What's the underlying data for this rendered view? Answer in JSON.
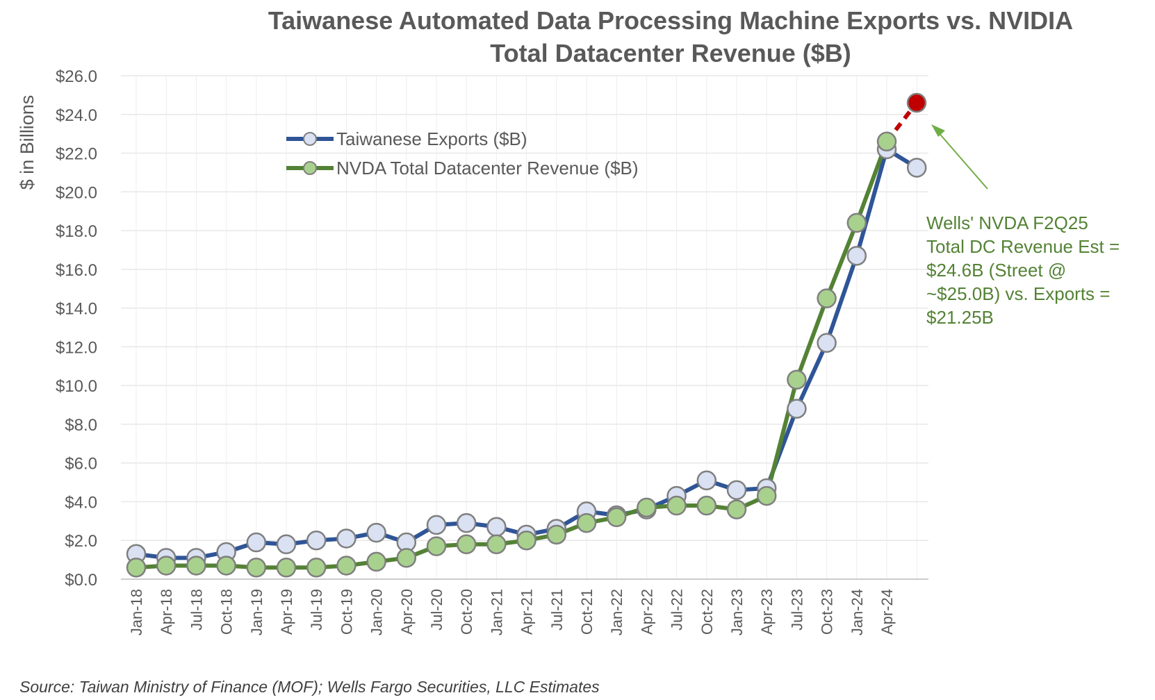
{
  "chart_data": {
    "type": "line",
    "title_lines": [
      "Taiwanese Automated Data Processing Machine Exports vs. NVIDIA",
      "Total Datacenter Revenue ($B)"
    ],
    "ylabel": "$ in Billions",
    "ylim": [
      0,
      26
    ],
    "y_ticks": [
      "$0.0",
      "$2.0",
      "$4.0",
      "$6.0",
      "$8.0",
      "$10.0",
      "$12.0",
      "$14.0",
      "$16.0",
      "$18.0",
      "$20.0",
      "$22.0",
      "$24.0",
      "$26.0"
    ],
    "x_tick_labels": [
      "Jan-18",
      "Apr-18",
      "Jul-18",
      "Oct-18",
      "Jan-19",
      "Apr-19",
      "Jul-19",
      "Oct-19",
      "Jan-20",
      "Apr-20",
      "Jul-20",
      "Oct-20",
      "Jan-21",
      "Apr-21",
      "Jul-21",
      "Oct-21",
      "Jan-22",
      "Apr-22",
      "Jul-22",
      "Oct-22",
      "Jan-23",
      "Apr-23",
      "Jul-23",
      "Oct-23",
      "Jan-24",
      "Apr-24"
    ],
    "grid": true,
    "legend_position": "top-left",
    "series": [
      {
        "name": "Taiwanese Exports ($B)",
        "color": "#2F5597",
        "marker_fill": "#D9E1F2",
        "values": [
          1.3,
          1.1,
          1.1,
          1.4,
          1.9,
          1.8,
          2.0,
          2.1,
          2.4,
          1.9,
          2.8,
          2.9,
          2.7,
          2.3,
          2.6,
          3.5,
          3.3,
          3.6,
          4.3,
          5.1,
          4.6,
          4.7,
          8.8,
          12.2,
          16.7,
          22.2,
          21.25
        ]
      },
      {
        "name": "NVDA Total Datacenter Revenue ($B)",
        "color": "#548235",
        "marker_fill": "#A9D18E",
        "values": [
          0.6,
          0.7,
          0.7,
          0.7,
          0.6,
          0.6,
          0.6,
          0.7,
          0.9,
          1.1,
          1.7,
          1.8,
          1.8,
          2.0,
          2.3,
          2.9,
          3.2,
          3.7,
          3.8,
          3.8,
          3.6,
          4.3,
          10.3,
          14.5,
          18.4,
          22.6,
          null
        ]
      }
    ],
    "estimate_point": {
      "value": 24.6,
      "color": "#C00000"
    },
    "annotation_lines": [
      "Wells' NVDA F2Q25",
      "Total DC Revenue Est =",
      "$24.6B (Street @",
      "~$25.0B) vs. Exports =",
      "$21.25B"
    ],
    "source": "Source: Taiwan Ministry of Finance (MOF); Wells Fargo Securities, LLC Estimates"
  }
}
